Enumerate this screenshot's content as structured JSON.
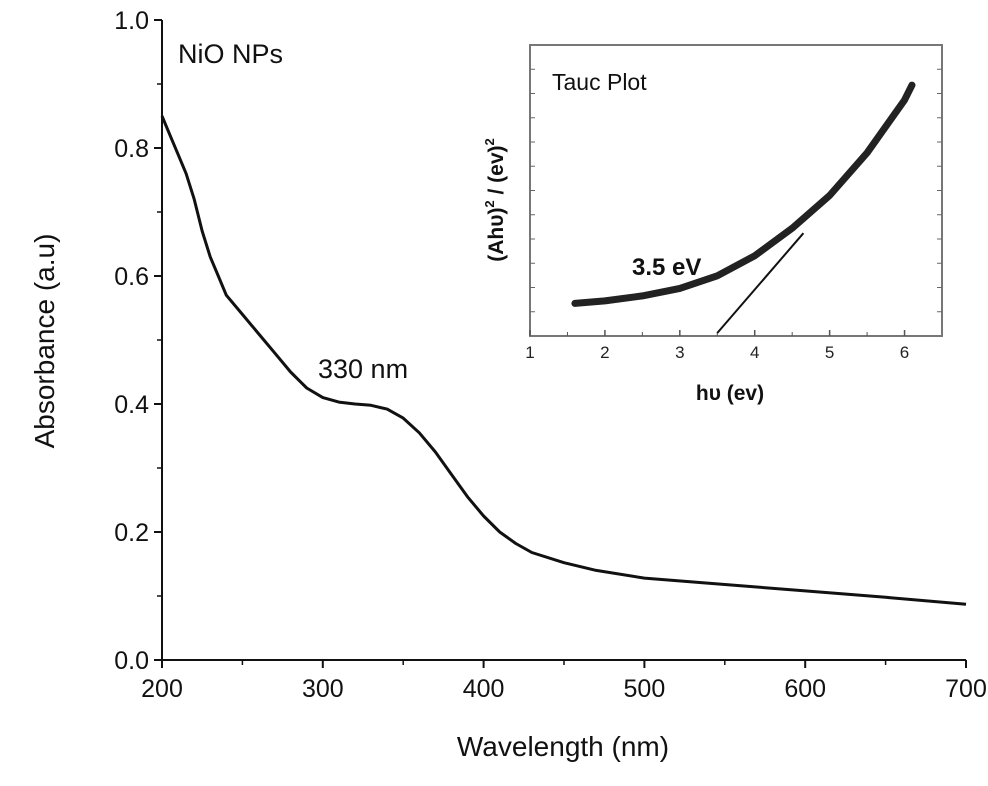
{
  "chart_data": [
    {
      "type": "line",
      "title": "",
      "xlabel": "Wavelength (nm)",
      "ylabel": "Absorbance (a.u)",
      "xlim": [
        200,
        700
      ],
      "ylim": [
        0.0,
        1.0
      ],
      "x_ticks": [
        "200",
        "300",
        "400",
        "500",
        "600",
        "700"
      ],
      "y_ticks": [
        "0.0",
        "0.2",
        "0.4",
        "0.6",
        "0.8",
        "1.0"
      ],
      "grid": false,
      "annotations": [
        "NiO NPs",
        "330 nm"
      ],
      "series": [
        {
          "x": [
            200,
            205,
            210,
            215,
            220,
            225,
            230,
            235,
            240,
            250,
            260,
            270,
            280,
            290,
            300,
            310,
            320,
            330,
            340,
            350,
            360,
            370,
            380,
            390,
            400,
            410,
            420,
            430,
            450,
            470,
            500,
            550,
            600,
            650,
            700
          ],
          "y": [
            0.85,
            0.82,
            0.79,
            0.76,
            0.72,
            0.67,
            0.63,
            0.6,
            0.57,
            0.54,
            0.51,
            0.48,
            0.45,
            0.425,
            0.41,
            0.403,
            0.4,
            0.398,
            0.392,
            0.378,
            0.355,
            0.325,
            0.29,
            0.255,
            0.225,
            0.2,
            0.182,
            0.168,
            0.152,
            0.14,
            0.128,
            0.118,
            0.108,
            0.098,
            0.087
          ]
        }
      ]
    },
    {
      "type": "line",
      "title": "Tauc Plot",
      "xlabel": "hυ (ev)",
      "ylabel_main": "(Ahυ)",
      "ylabel_sup1": "2",
      "ylabel_mid": " / (ev)",
      "ylabel_sup2": "2",
      "xlim": [
        1,
        6.5
      ],
      "ylim": [
        0,
        1
      ],
      "x_ticks": [
        "1",
        "2",
        "3",
        "4",
        "5",
        "6"
      ],
      "grid": false,
      "annotations": [
        "3.5 eV"
      ],
      "series": [
        {
          "x": [
            1.6,
            2.0,
            2.5,
            3.0,
            3.5,
            4.0,
            4.5,
            5.0,
            5.5,
            6.0,
            6.1
          ],
          "y": [
            0.05,
            0.06,
            0.08,
            0.11,
            0.16,
            0.24,
            0.35,
            0.48,
            0.65,
            0.86,
            0.92
          ]
        }
      ],
      "tangent_x": [
        3.5,
        4.65
      ],
      "tangent_y": [
        0.0,
        0.33
      ]
    }
  ]
}
